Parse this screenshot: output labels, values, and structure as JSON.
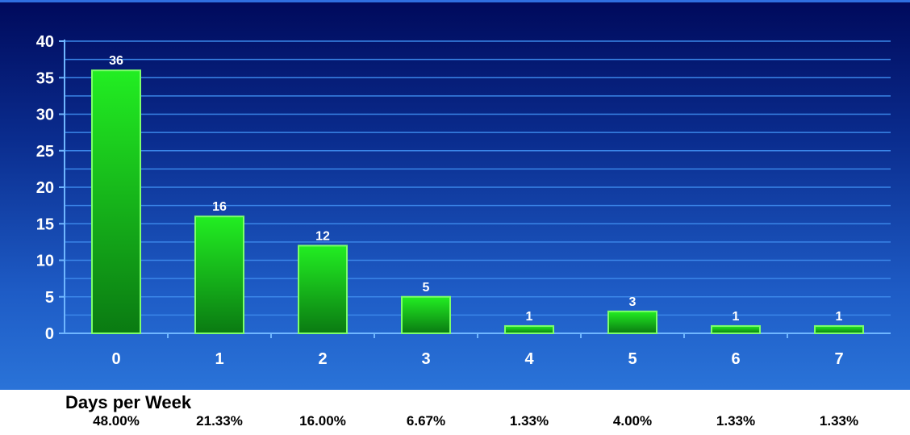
{
  "chart_data": {
    "type": "bar",
    "categories": [
      "0",
      "1",
      "2",
      "3",
      "4",
      "5",
      "6",
      "7"
    ],
    "values": [
      36,
      16,
      12,
      5,
      1,
      3,
      1,
      1
    ],
    "data_labels": [
      "36",
      "16",
      "12",
      "5",
      "1",
      "3",
      "1",
      "1"
    ],
    "percentages": [
      "48.00%",
      "21.33%",
      "16.00%",
      "6.67%",
      "1.33%",
      "4.00%",
      "1.33%",
      "1.33%"
    ],
    "xlabel": "Days per Week",
    "ylabel": "",
    "ylim": [
      0,
      40
    ],
    "yticks": [
      "0",
      "5",
      "10",
      "15",
      "20",
      "25",
      "30",
      "35",
      "40"
    ],
    "grid": true,
    "legend": "none",
    "colors": {
      "bar_top": "#22ee22",
      "bar_bottom": "#0a7a12",
      "bar_edge": "#7dff6a",
      "background_top": "#000a5c",
      "background_bottom": "#2a73d8",
      "gridline": "#3b86e8",
      "text": "#ffffff"
    }
  }
}
